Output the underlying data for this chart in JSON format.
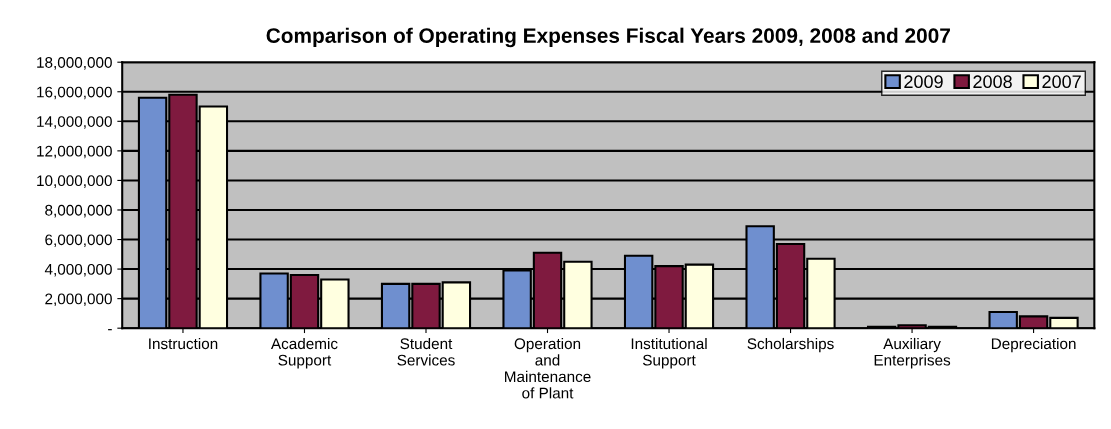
{
  "chart_data": {
    "type": "bar",
    "title": "Comparison of Operating Expenses Fiscal Years 2009, 2008 and 2007",
    "categories": [
      "Instruction",
      "Academic\nSupport",
      "Student\nServices",
      "Operation\nand\nMaintenance\nof Plant",
      "Institutional\nSupport",
      "Scholarships",
      "Auxiliary\nEnterprises",
      "Depreciation"
    ],
    "series": [
      {
        "name": "2009",
        "color": "#6f8fcf",
        "values": [
          15600000,
          3700000,
          3000000,
          3900000,
          4900000,
          6900000,
          100000,
          1100000
        ]
      },
      {
        "name": "2008",
        "color": "#7f1a3f",
        "values": [
          15800000,
          3600000,
          3000000,
          5100000,
          4200000,
          5700000,
          200000,
          800000
        ]
      },
      {
        "name": "2007",
        "color": "#ffffe0",
        "values": [
          15000000,
          3300000,
          3100000,
          4500000,
          4300000,
          4700000,
          100000,
          700000
        ]
      }
    ],
    "ylim": [
      0,
      18000000
    ],
    "yticks": [
      {
        "value": 0,
        "label": "-"
      },
      {
        "value": 2000000,
        "label": "2,000,000"
      },
      {
        "value": 4000000,
        "label": "4,000,000"
      },
      {
        "value": 6000000,
        "label": "6,000,000"
      },
      {
        "value": 8000000,
        "label": "8,000,000"
      },
      {
        "value": 10000000,
        "label": "10,000,000"
      },
      {
        "value": 12000000,
        "label": "12,000,000"
      },
      {
        "value": 14000000,
        "label": "14,000,000"
      },
      {
        "value": 16000000,
        "label": "16,000,000"
      },
      {
        "value": 18000000,
        "label": "18,000,000"
      }
    ],
    "grid": "y",
    "legend": "top right"
  }
}
